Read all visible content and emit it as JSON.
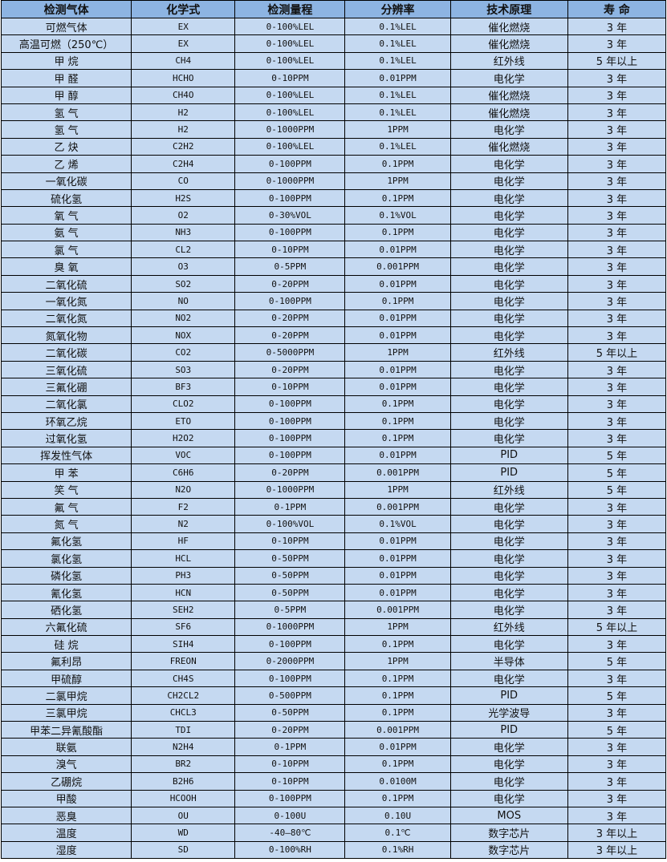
{
  "headers": [
    "检测气体",
    "化学式",
    "检测量程",
    "分辨率",
    "技术原理",
    "寿 命"
  ],
  "rows": [
    [
      "可燃气体",
      "EX",
      "0-100%LEL",
      "0.1%LEL",
      "催化燃烧",
      "3 年"
    ],
    [
      "高温可燃（250℃）",
      "EX",
      "0-100%LEL",
      "0.1%LEL",
      "催化燃烧",
      "3 年"
    ],
    [
      "甲 烷",
      "CH4",
      "0-100%LEL",
      "0.1%LEL",
      "红外线",
      "5 年以上"
    ],
    [
      "甲 醛",
      "HCHO",
      "0-10PPM",
      "0.01PPM",
      "电化学",
      "3 年"
    ],
    [
      "甲 醇",
      "CH4O",
      "0-100%LEL",
      "0.1%LEL",
      "催化燃烧",
      "3 年"
    ],
    [
      "氢 气",
      "H2",
      "0-100%LEL",
      "0.1%LEL",
      "催化燃烧",
      "3 年"
    ],
    [
      "氢 气",
      "H2",
      "0-1000PPM",
      "1PPM",
      "电化学",
      "3 年"
    ],
    [
      "乙 炔",
      "C2H2",
      "0-100%LEL",
      "0.1%LEL",
      "催化燃烧",
      "3 年"
    ],
    [
      "乙 烯",
      "C2H4",
      "0-100PPM",
      "0.1PPM",
      "电化学",
      "3 年"
    ],
    [
      "一氧化碳",
      "CO",
      "0-1000PPM",
      "1PPM",
      "电化学",
      "3 年"
    ],
    [
      "硫化氢",
      "H2S",
      "0-100PPM",
      "0.1PPM",
      "电化学",
      "3 年"
    ],
    [
      "氧 气",
      "O2",
      "0-30%VOL",
      "0.1%VOL",
      "电化学",
      "3 年"
    ],
    [
      "氨 气",
      "NH3",
      "0-100PPM",
      "0.1PPM",
      "电化学",
      "3 年"
    ],
    [
      "氯 气",
      "CL2",
      "0-10PPM",
      "0.01PPM",
      "电化学",
      "3 年"
    ],
    [
      "臭 氧",
      "O3",
      "0-5PPM",
      "0.001PPM",
      "电化学",
      "3 年"
    ],
    [
      "二氧化硫",
      "SO2",
      "0-20PPM",
      "0.01PPM",
      "电化学",
      "3 年"
    ],
    [
      "一氧化氮",
      "NO",
      "0-100PPM",
      "0.1PPM",
      "电化学",
      "3 年"
    ],
    [
      "二氧化氮",
      "NO2",
      "0-20PPM",
      "0.01PPM",
      "电化学",
      "3 年"
    ],
    [
      "氮氧化物",
      "NOX",
      "0-20PPM",
      "0.01PPM",
      "电化学",
      "3 年"
    ],
    [
      "二氧化碳",
      "CO2",
      "0-5000PPM",
      "1PPM",
      "红外线",
      "5 年以上"
    ],
    [
      "三氧化硫",
      "SO3",
      "0-20PPM",
      "0.01PPM",
      "电化学",
      "3 年"
    ],
    [
      "三氟化硼",
      "BF3",
      "0-10PPM",
      "0.01PPM",
      "电化学",
      "3 年"
    ],
    [
      "二氧化氯",
      "CLO2",
      "0-100PPM",
      "0.1PPM",
      "电化学",
      "3 年"
    ],
    [
      "环氧乙烷",
      "ETO",
      "0-100PPM",
      "0.1PPM",
      "电化学",
      "3 年"
    ],
    [
      "过氧化氢",
      "H2O2",
      "0-100PPM",
      "0.1PPM",
      "电化学",
      "3 年"
    ],
    [
      "挥发性气体",
      "VOC",
      "0-100PPM",
      "0.01PPM",
      "PID",
      "5 年"
    ],
    [
      "甲 苯",
      "C6H6",
      "0-20PPM",
      "0.001PPM",
      "PID",
      "5 年"
    ],
    [
      "笑 气",
      "N2O",
      "0-1000PPM",
      "1PPM",
      "红外线",
      "5 年"
    ],
    [
      "氟 气",
      "F2",
      "0-1PPM",
      "0.001PPM",
      "电化学",
      "3 年"
    ],
    [
      "氮 气",
      "N2",
      "0-100%VOL",
      "0.1%VOL",
      "电化学",
      "3 年"
    ],
    [
      "氟化氢",
      "HF",
      "0-10PPM",
      "0.01PPM",
      "电化学",
      "3 年"
    ],
    [
      "氯化氢",
      "HCL",
      "0-50PPM",
      "0.01PPM",
      "电化学",
      "3 年"
    ],
    [
      "磷化氢",
      "PH3",
      "0-50PPM",
      "0.01PPM",
      "电化学",
      "3 年"
    ],
    [
      "氰化氢",
      "HCN",
      "0-50PPM",
      "0.01PPM",
      "电化学",
      "3 年"
    ],
    [
      "硒化氢",
      "SEH2",
      "0-5PPM",
      "0.001PPM",
      "电化学",
      "3 年"
    ],
    [
      "六氟化硫",
      "SF6",
      "0-1000PPM",
      "1PPM",
      "红外线",
      "5 年以上"
    ],
    [
      "硅 烷",
      "SIH4",
      "0-100PPM",
      "0.1PPM",
      "电化学",
      "3 年"
    ],
    [
      "氟利昂",
      "FREON",
      "0-2000PPM",
      "1PPM",
      "半导体",
      "5 年"
    ],
    [
      "甲硫醇",
      "CH4S",
      "0-100PPM",
      "0.1PPM",
      "电化学",
      "3 年"
    ],
    [
      "二氯甲烷",
      "CH2CL2",
      "0-500PPM",
      "0.1PPM",
      "PID",
      "5 年"
    ],
    [
      "三氯甲烷",
      "CHCL3",
      "0-50PPM",
      "0.1PPM",
      "光学波导",
      "3 年"
    ],
    [
      "甲苯二异氰酸酯",
      "TDI",
      "0-20PPM",
      "0.001PPM",
      "PID",
      "5 年"
    ],
    [
      "联氨",
      "N2H4",
      "0-1PPM",
      "0.01PPM",
      "电化学",
      "3 年"
    ],
    [
      "溴气",
      "BR2",
      "0-10PPM",
      "0.1PPM",
      "电化学",
      "3 年"
    ],
    [
      "乙硼烷",
      "B2H6",
      "0-10PPM",
      "0.0100M",
      "电化学",
      "3 年"
    ],
    [
      "甲酸",
      "HCOOH",
      "0-100PPM",
      "0.1PPM",
      "电化学",
      "3 年"
    ],
    [
      "恶臭",
      "OU",
      "0-100U",
      "0.10U",
      "MOS",
      "3 年"
    ],
    [
      "温度",
      "WD",
      "-40—80℃",
      "0.1℃",
      "数字芯片",
      "3 年以上"
    ],
    [
      "湿度",
      "SD",
      "0-100%RH",
      "0.1%RH",
      "数字芯片",
      "3 年以上"
    ]
  ],
  "colors": {
    "header_bg": "#8db4e2",
    "row_bg": "#c5d9f1",
    "border": "#000000"
  }
}
